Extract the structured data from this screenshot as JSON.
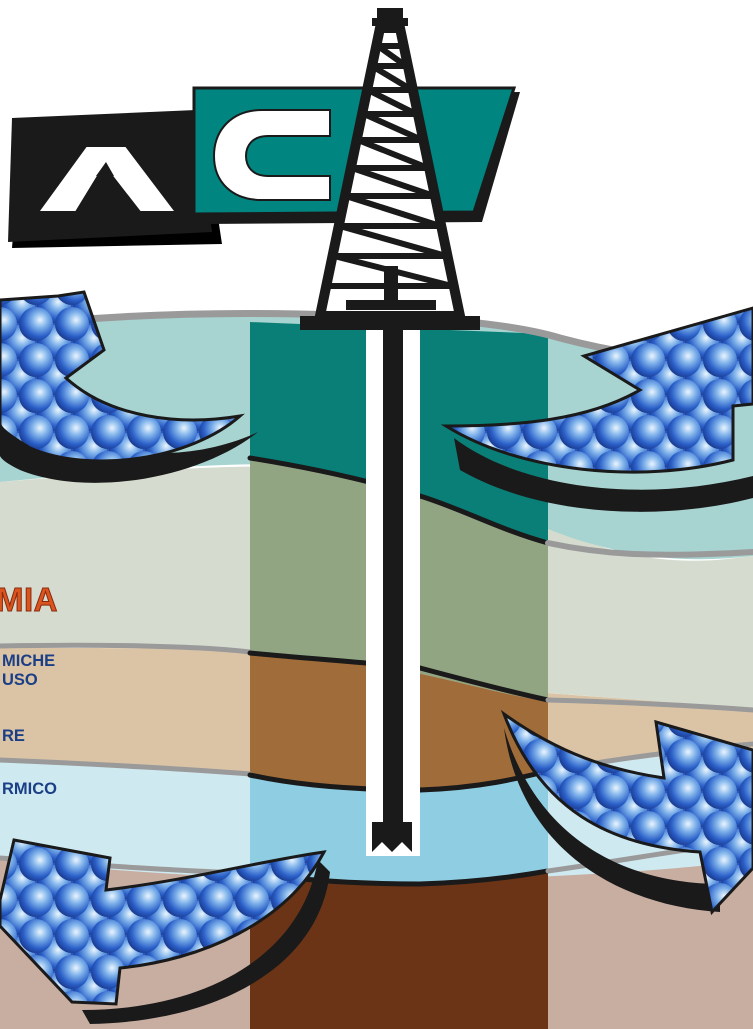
{
  "logo": {
    "letter_left": "A",
    "letter_right": "C"
  },
  "side_text": {
    "heading_fragment": "MIA",
    "lines": [
      "MICHE",
      "USO",
      "RE",
      "RMICO"
    ]
  },
  "colors": {
    "teal_brand": "#008580",
    "heading_orange": "#d9541e",
    "text_blue": "#1b3f86",
    "stratum_1": "#a7d3d0",
    "stratum_2": "#d5dccf",
    "stratum_3": "#dbc4a6",
    "stratum_4": "#cfe9f0",
    "stratum_5": "#c8ada1",
    "core_1": "#0a7f77",
    "core_2": "#92a582",
    "core_3": "#a06c3a",
    "core_4": "#8fcde2",
    "core_5": "#6b3416"
  },
  "icons": [
    "drilling-rig-icon",
    "flow-arrow-icon"
  ]
}
